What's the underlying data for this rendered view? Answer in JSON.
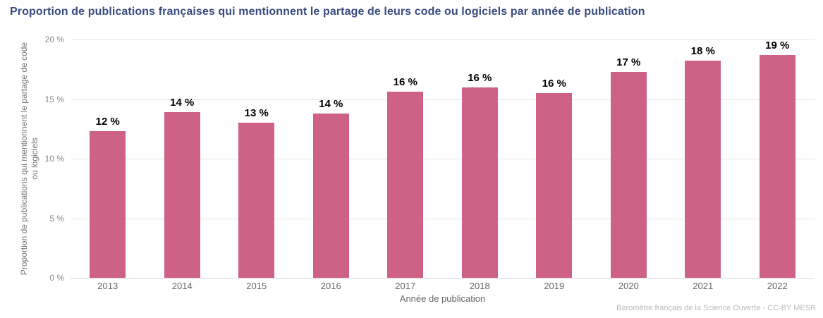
{
  "page": {
    "source": "Baromètre français de la Science Ouverte - CC-BY MESR"
  },
  "colors": {
    "bar": "#ce6186",
    "title": "#3a4b80",
    "value_label": "#000000",
    "grid": "#e6e6e6"
  },
  "chart_data": {
    "type": "bar",
    "title": "Proportion de publications françaises qui mentionnent le partage de leurs code ou logiciels par année de publication",
    "xlabel": "Année de publication",
    "ylabel": "Proportion de publications qui mentionnent le partage de code ou logiciels",
    "categories": [
      "2013",
      "2014",
      "2015",
      "2016",
      "2017",
      "2018",
      "2019",
      "2020",
      "2021",
      "2022"
    ],
    "values": [
      12.3,
      13.9,
      13.0,
      13.8,
      15.6,
      16.0,
      15.5,
      17.3,
      18.2,
      18.9
    ],
    "value_labels": [
      "12 %",
      "14 %",
      "13 %",
      "14 %",
      "16 %",
      "16 %",
      "16 %",
      "17 %",
      "18 %",
      "19 %"
    ],
    "ylim": [
      0,
      20
    ],
    "yticks": [
      {
        "value": 0,
        "label": "0 %"
      },
      {
        "value": 5,
        "label": "5 %"
      },
      {
        "value": 10,
        "label": "10 %"
      },
      {
        "value": 15,
        "label": "15 %"
      },
      {
        "value": 20,
        "label": "20 %"
      }
    ],
    "grid": true,
    "legend": "none"
  }
}
